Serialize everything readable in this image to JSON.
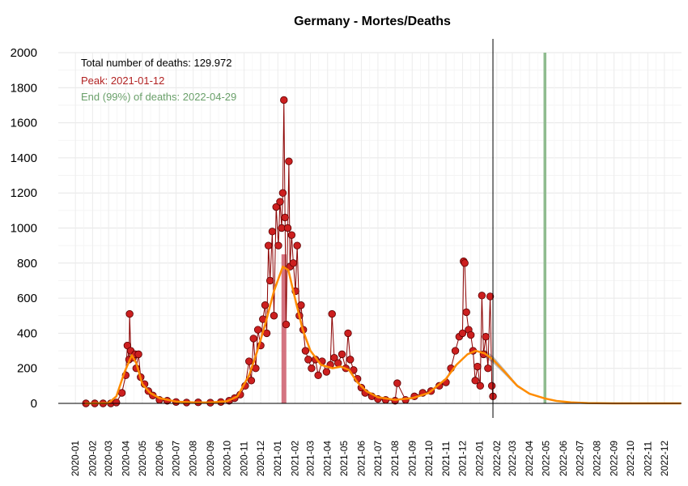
{
  "chart_data": {
    "type": "line",
    "title": "Germany - Mortes/Deaths",
    "xlabel": "",
    "ylabel": "",
    "ylim": [
      0,
      2000
    ],
    "y_ticks": [
      0,
      200,
      400,
      600,
      800,
      1000,
      1200,
      1400,
      1600,
      1800,
      2000
    ],
    "x_range": [
      "2019-12-01",
      "2023-01-01"
    ],
    "x_ticks": [
      "2020-01",
      "2020-02",
      "2020-03",
      "2020-04",
      "2020-05",
      "2020-06",
      "2020-07",
      "2020-08",
      "2020-09",
      "2020-10",
      "2020-11",
      "2020-12",
      "2021-01",
      "2021-02",
      "2021-03",
      "2021-04",
      "2021-05",
      "2021-06",
      "2021-07",
      "2021-08",
      "2021-09",
      "2021-10",
      "2021-11",
      "2021-12",
      "2022-01",
      "2022-02",
      "2022-03",
      "2022-04",
      "2022-05",
      "2022-06",
      "2022-07",
      "2022-08",
      "2022-09",
      "2022-10",
      "2022-11",
      "2022-12"
    ],
    "grid": true,
    "annotations": {
      "total": "Total number of deaths: 129.972",
      "peak": "Peak: 2021-01-12",
      "end": "End (99%) of deaths: 2022-04-29"
    },
    "colors": {
      "observed_line": "#8b0000",
      "observed_points": "#cc1f1f",
      "smoothed": "#ff8c00",
      "forecast_band": "#b3b3b3",
      "peak_bar": "#cd5c6b",
      "end_line": "#8fbc8f",
      "peak_text": "#b22222",
      "end_text": "#6aa06a"
    },
    "last_observed_date": "2022-01-25",
    "peak_date": "2021-01-12",
    "end_date": "2022-04-29",
    "smoothed_series": {
      "name": "",
      "points": [
        [
          "2020-01-18",
          0
        ],
        [
          "2020-03-01",
          2
        ],
        [
          "2020-03-15",
          40
        ],
        [
          "2020-03-30",
          180
        ],
        [
          "2020-04-12",
          275
        ],
        [
          "2020-04-20",
          230
        ],
        [
          "2020-05-01",
          110
        ],
        [
          "2020-05-15",
          60
        ],
        [
          "2020-06-01",
          30
        ],
        [
          "2020-07-01",
          10
        ],
        [
          "2020-08-01",
          6
        ],
        [
          "2020-09-01",
          5
        ],
        [
          "2020-10-01",
          12
        ],
        [
          "2020-10-20",
          40
        ],
        [
          "2020-11-10",
          160
        ],
        [
          "2020-11-25",
          300
        ],
        [
          "2020-12-10",
          460
        ],
        [
          "2020-12-25",
          640
        ],
        [
          "2021-01-10",
          780
        ],
        [
          "2021-01-20",
          760
        ],
        [
          "2021-02-01",
          600
        ],
        [
          "2021-02-15",
          420
        ],
        [
          "2021-03-01",
          300
        ],
        [
          "2021-03-20",
          220
        ],
        [
          "2021-04-10",
          200
        ],
        [
          "2021-04-25",
          210
        ],
        [
          "2021-05-10",
          190
        ],
        [
          "2021-05-25",
          120
        ],
        [
          "2021-06-10",
          70
        ],
        [
          "2021-07-01",
          35
        ],
        [
          "2021-08-01",
          20
        ],
        [
          "2021-09-01",
          30
        ],
        [
          "2021-10-01",
          60
        ],
        [
          "2021-11-01",
          140
        ],
        [
          "2021-11-20",
          220
        ],
        [
          "2021-12-10",
          280
        ],
        [
          "2021-12-25",
          300
        ],
        [
          "2022-01-10",
          285
        ],
        [
          "2022-01-25",
          250
        ],
        [
          "2022-02-15",
          180
        ],
        [
          "2022-03-10",
          100
        ],
        [
          "2022-04-01",
          55
        ],
        [
          "2022-04-29",
          28
        ],
        [
          "2022-05-20",
          14
        ],
        [
          "2022-06-15",
          6
        ],
        [
          "2022-07-15",
          2
        ],
        [
          "2022-09-01",
          0
        ],
        [
          "2022-12-31",
          0
        ]
      ]
    },
    "observed_series": {
      "name": "",
      "points": [
        [
          "2020-01-20",
          0
        ],
        [
          "2020-02-05",
          0
        ],
        [
          "2020-02-20",
          0
        ],
        [
          "2020-03-05",
          0
        ],
        [
          "2020-03-15",
          5
        ],
        [
          "2020-03-25",
          60
        ],
        [
          "2020-04-01",
          160
        ],
        [
          "2020-04-04",
          330
        ],
        [
          "2020-04-07",
          250
        ],
        [
          "2020-04-08",
          510
        ],
        [
          "2020-04-10",
          300
        ],
        [
          "2020-04-14",
          260
        ],
        [
          "2020-04-18",
          280
        ],
        [
          "2020-04-20",
          200
        ],
        [
          "2020-04-24",
          280
        ],
        [
          "2020-04-28",
          150
        ],
        [
          "2020-05-05",
          110
        ],
        [
          "2020-05-12",
          70
        ],
        [
          "2020-05-20",
          45
        ],
        [
          "2020-06-01",
          20
        ],
        [
          "2020-06-15",
          15
        ],
        [
          "2020-07-01",
          8
        ],
        [
          "2020-07-20",
          5
        ],
        [
          "2020-08-10",
          6
        ],
        [
          "2020-09-01",
          4
        ],
        [
          "2020-09-20",
          8
        ],
        [
          "2020-10-05",
          15
        ],
        [
          "2020-10-15",
          30
        ],
        [
          "2020-10-25",
          50
        ],
        [
          "2020-11-03",
          100
        ],
        [
          "2020-11-10",
          240
        ],
        [
          "2020-11-14",
          130
        ],
        [
          "2020-11-18",
          370
        ],
        [
          "2020-11-22",
          200
        ],
        [
          "2020-11-26",
          420
        ],
        [
          "2020-12-01",
          330
        ],
        [
          "2020-12-05",
          480
        ],
        [
          "2020-12-09",
          560
        ],
        [
          "2020-12-12",
          400
        ],
        [
          "2020-12-15",
          900
        ],
        [
          "2020-12-18",
          700
        ],
        [
          "2020-12-22",
          980
        ],
        [
          "2020-12-25",
          500
        ],
        [
          "2020-12-29",
          1120
        ],
        [
          "2021-01-02",
          900
        ],
        [
          "2021-01-05",
          1150
        ],
        [
          "2021-01-08",
          1000
        ],
        [
          "2021-01-10",
          1200
        ],
        [
          "2021-01-12",
          1730
        ],
        [
          "2021-01-14",
          1060
        ],
        [
          "2021-01-16",
          450
        ],
        [
          "2021-01-19",
          1000
        ],
        [
          "2021-01-21",
          1380
        ],
        [
          "2021-01-23",
          780
        ],
        [
          "2021-01-26",
          960
        ],
        [
          "2021-01-29",
          800
        ],
        [
          "2021-02-02",
          640
        ],
        [
          "2021-02-05",
          900
        ],
        [
          "2021-02-09",
          500
        ],
        [
          "2021-02-12",
          560
        ],
        [
          "2021-02-16",
          420
        ],
        [
          "2021-02-20",
          300
        ],
        [
          "2021-02-25",
          250
        ],
        [
          "2021-03-03",
          200
        ],
        [
          "2021-03-10",
          250
        ],
        [
          "2021-03-15",
          160
        ],
        [
          "2021-03-22",
          240
        ],
        [
          "2021-03-30",
          180
        ],
        [
          "2021-04-06",
          220
        ],
        [
          "2021-04-09",
          510
        ],
        [
          "2021-04-13",
          260
        ],
        [
          "2021-04-20",
          230
        ],
        [
          "2021-04-27",
          280
        ],
        [
          "2021-05-04",
          200
        ],
        [
          "2021-05-08",
          400
        ],
        [
          "2021-05-12",
          250
        ],
        [
          "2021-05-18",
          190
        ],
        [
          "2021-05-25",
          140
        ],
        [
          "2021-06-01",
          90
        ],
        [
          "2021-06-08",
          60
        ],
        [
          "2021-06-20",
          40
        ],
        [
          "2021-07-01",
          25
        ],
        [
          "2021-07-15",
          20
        ],
        [
          "2021-08-01",
          15
        ],
        [
          "2021-08-05",
          115
        ],
        [
          "2021-08-20",
          20
        ],
        [
          "2021-09-05",
          40
        ],
        [
          "2021-09-20",
          60
        ],
        [
          "2021-10-05",
          70
        ],
        [
          "2021-10-20",
          100
        ],
        [
          "2021-11-01",
          120
        ],
        [
          "2021-11-10",
          200
        ],
        [
          "2021-11-18",
          300
        ],
        [
          "2021-11-25",
          380
        ],
        [
          "2021-12-01",
          400
        ],
        [
          "2021-12-03",
          810
        ],
        [
          "2021-12-05",
          800
        ],
        [
          "2021-12-08",
          520
        ],
        [
          "2021-12-12",
          420
        ],
        [
          "2021-12-16",
          390
        ],
        [
          "2021-12-20",
          300
        ],
        [
          "2021-12-24",
          130
        ],
        [
          "2021-12-28",
          210
        ],
        [
          "2022-01-02",
          100
        ],
        [
          "2022-01-05",
          615
        ],
        [
          "2022-01-08",
          280
        ],
        [
          "2022-01-12",
          380
        ],
        [
          "2022-01-16",
          200
        ],
        [
          "2022-01-20",
          610
        ],
        [
          "2022-01-23",
          100
        ],
        [
          "2022-01-25",
          40
        ]
      ]
    }
  }
}
